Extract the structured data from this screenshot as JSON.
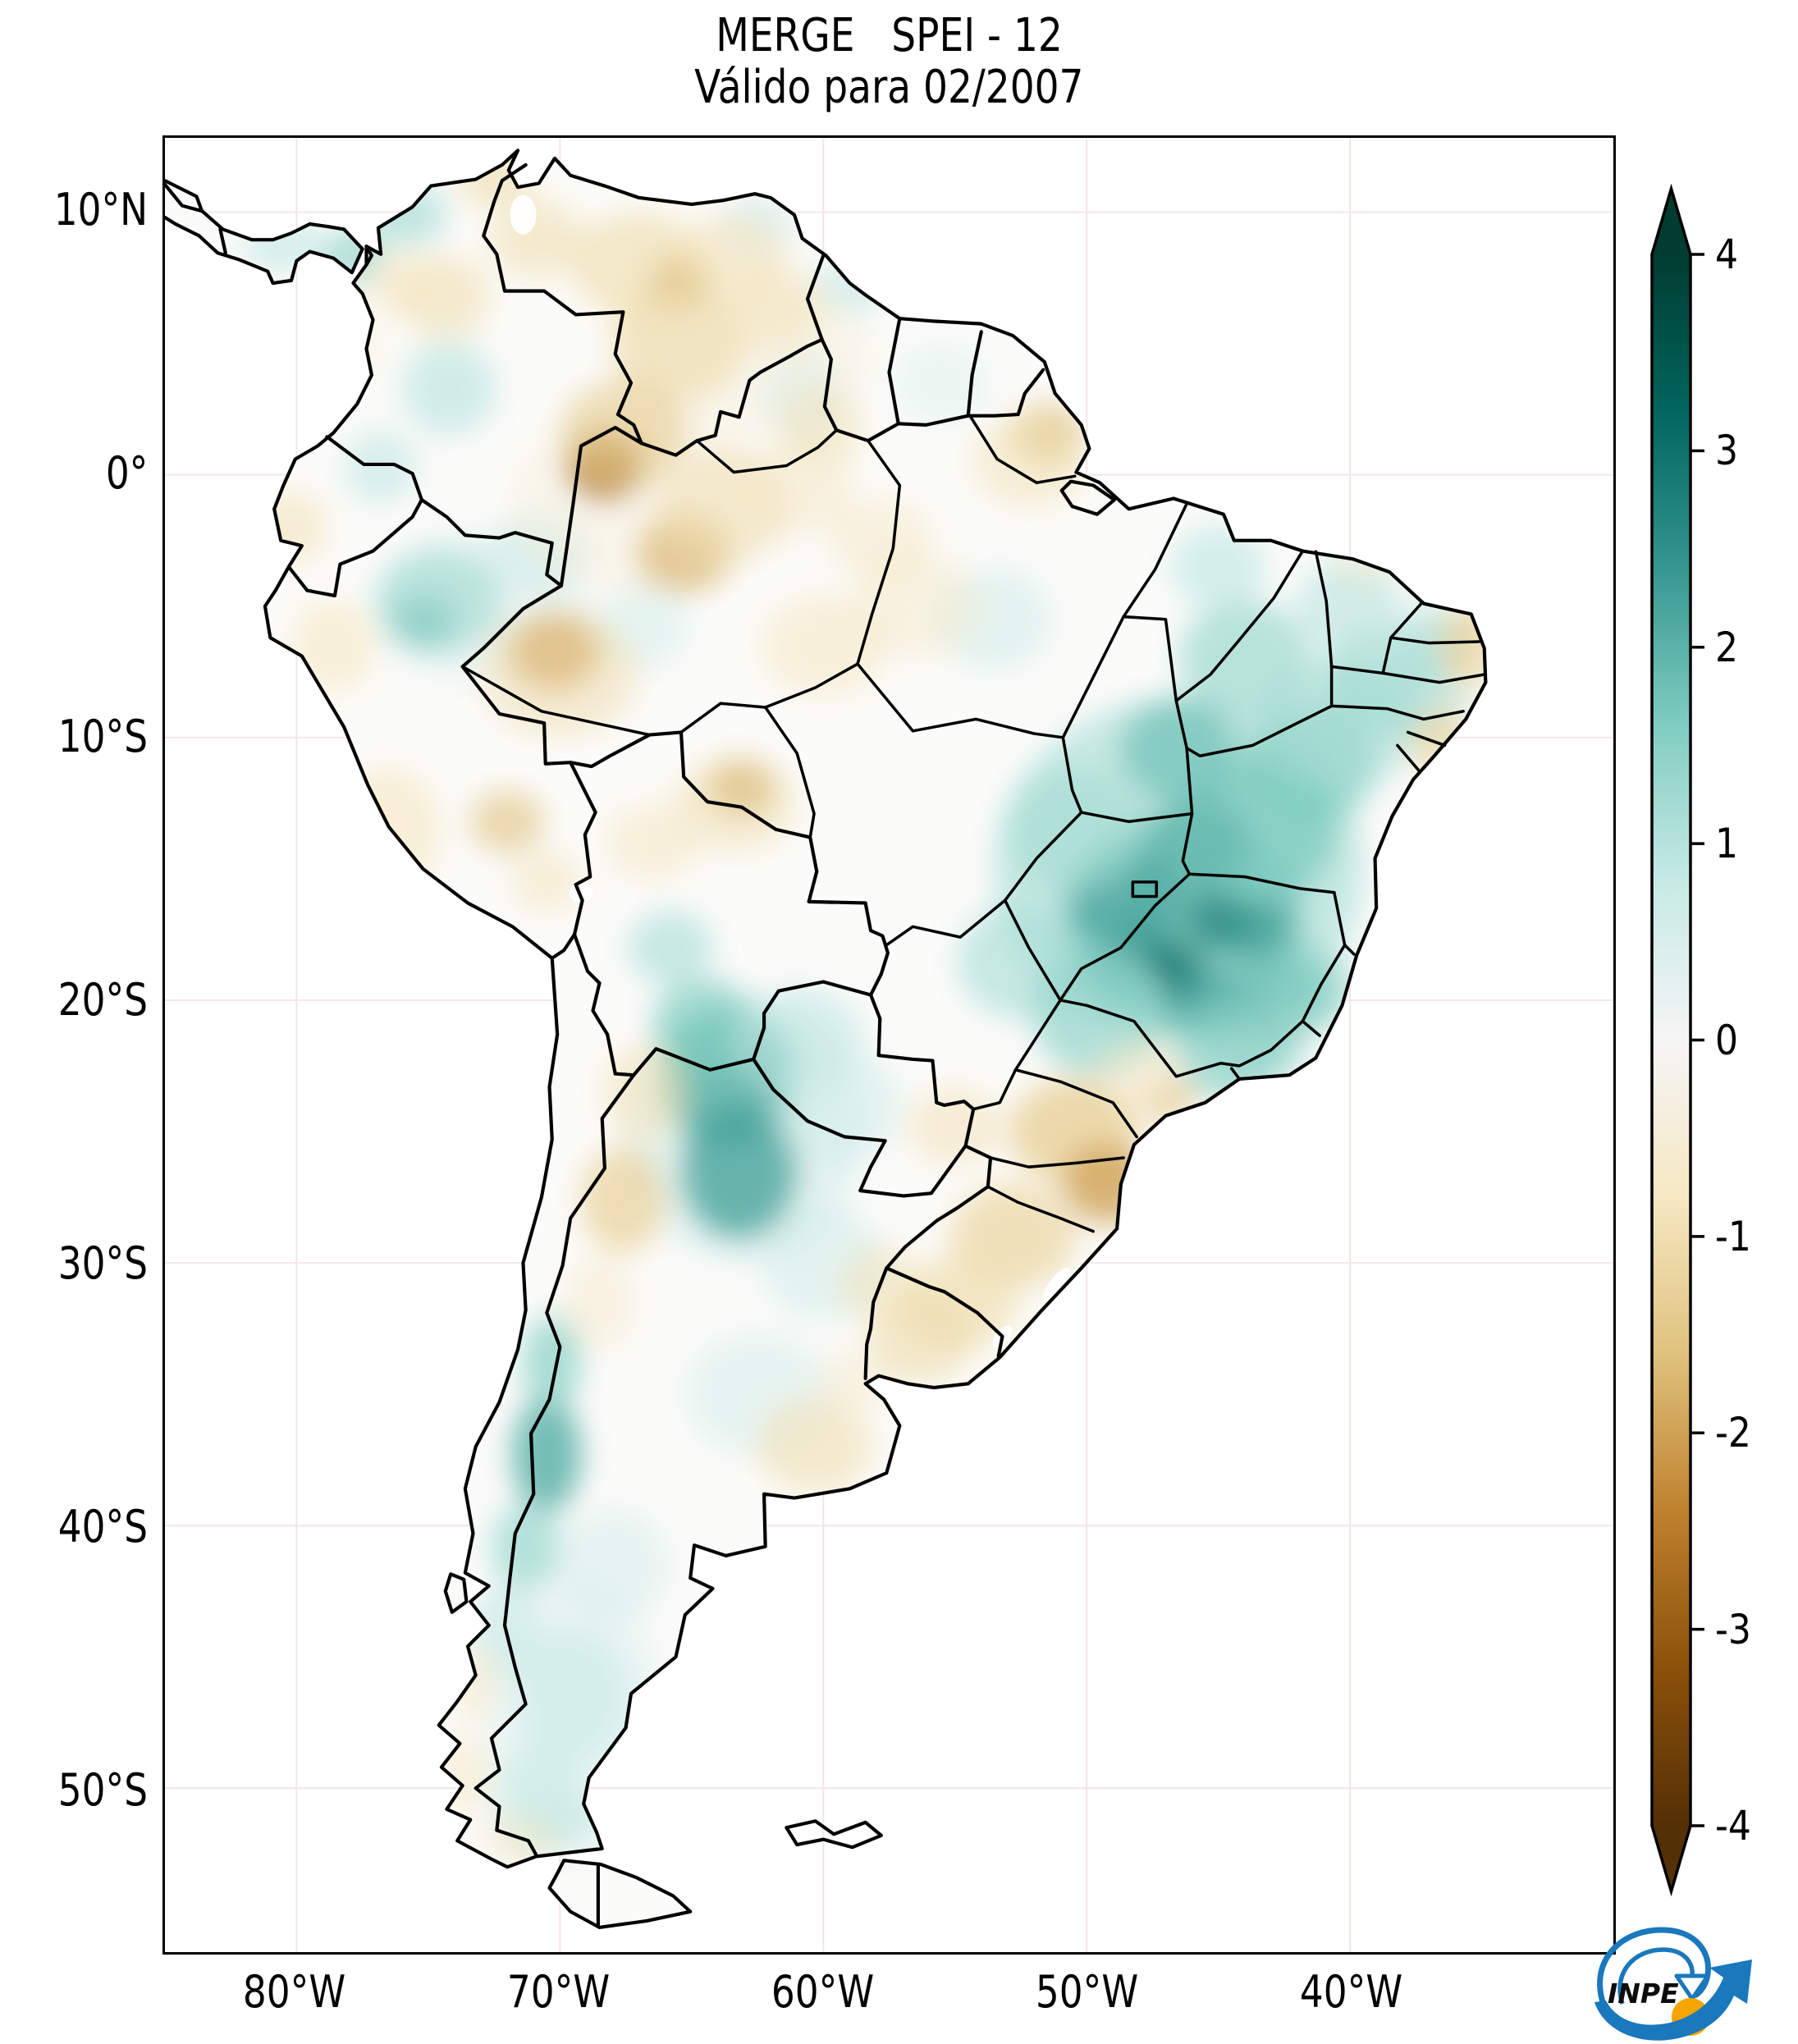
{
  "title": {
    "line1": "MERGE   SPEI - 12",
    "line2": "Válido para 02/2007"
  },
  "axes": {
    "y_ticks": [
      {
        "label": "10°N",
        "deg": 10
      },
      {
        "label": "0°",
        "deg": 0
      },
      {
        "label": "10°S",
        "deg": -10
      },
      {
        "label": "20°S",
        "deg": -20
      },
      {
        "label": "30°S",
        "deg": -30
      },
      {
        "label": "40°S",
        "deg": -40
      },
      {
        "label": "50°S",
        "deg": -50
      }
    ],
    "x_ticks": [
      {
        "label": "80°W",
        "deg": -80
      },
      {
        "label": "70°W",
        "deg": -70
      },
      {
        "label": "60°W",
        "deg": -60
      },
      {
        "label": "50°W",
        "deg": -50
      },
      {
        "label": "40°W",
        "deg": -40
      }
    ]
  },
  "colorbar": {
    "ticks": [
      {
        "label": "4",
        "value": 4
      },
      {
        "label": "3",
        "value": 3
      },
      {
        "label": "2",
        "value": 2
      },
      {
        "label": "1",
        "value": 1
      },
      {
        "label": "0",
        "value": 0
      },
      {
        "label": "-1",
        "value": -1
      },
      {
        "label": "-2",
        "value": -2
      },
      {
        "label": "-3",
        "value": -3
      },
      {
        "label": "-4",
        "value": -4
      }
    ]
  },
  "logo": {
    "text": "INPE",
    "blue": "#1a78bc",
    "orange": "#f6a500"
  },
  "chart_data": {
    "type": "heatmap",
    "product": "MERGE",
    "variable": "SPEI-12",
    "valid_for": "02/2007",
    "colormap": "BrBG",
    "scale_range": [
      -4,
      4
    ],
    "map_extent": {
      "lon": [
        -85,
        -30
      ],
      "lat": [
        -56.2,
        12.8
      ]
    },
    "x_ticks_deg": [
      -80,
      -70,
      -60,
      -50,
      -40
    ],
    "y_ticks_deg": [
      10,
      0,
      -10,
      -20,
      -30,
      -40,
      -50
    ],
    "colormap_stops": [
      {
        "v": -4.0,
        "color": "#543005"
      },
      {
        "v": -3.2,
        "color": "#8c510a"
      },
      {
        "v": -2.4,
        "color": "#bf812d"
      },
      {
        "v": -1.6,
        "color": "#dfc27d"
      },
      {
        "v": -0.8,
        "color": "#f6e8c3"
      },
      {
        "v": 0.0,
        "color": "#f5f5f5"
      },
      {
        "v": 0.8,
        "color": "#c7eae5"
      },
      {
        "v": 1.6,
        "color": "#80cdc1"
      },
      {
        "v": 2.4,
        "color": "#35978f"
      },
      {
        "v": 3.2,
        "color": "#01665e"
      },
      {
        "v": 4.0,
        "color": "#003c30"
      }
    ],
    "anomaly_regions": [
      [
        -46.5,
        -15.0,
        7.0,
        6.5,
        1.2,
        0.6
      ],
      [
        -46.3,
        -17.0,
        4.5,
        4.0,
        1.8,
        0.75
      ],
      [
        -46.8,
        -18.8,
        1.2,
        1.1,
        3.0,
        0.75
      ],
      [
        -44.9,
        -16.9,
        1.3,
        1.2,
        2.8,
        0.7
      ],
      [
        -47.8,
        -17.8,
        1.0,
        0.9,
        2.6,
        0.6
      ],
      [
        -43.6,
        -17.2,
        1.4,
        1.2,
        2.4,
        0.6
      ],
      [
        -45.5,
        -20.2,
        1.5,
        1.3,
        2.4,
        0.65
      ],
      [
        -48.9,
        -18.9,
        1.2,
        1.0,
        2.2,
        0.6
      ],
      [
        -48.5,
        -16.2,
        2.2,
        2.0,
        2.2,
        0.7
      ],
      [
        -43.5,
        -13.5,
        3.0,
        2.8,
        1.6,
        0.8
      ],
      [
        -41.5,
        -11.0,
        2.5,
        2.3,
        1.6,
        0.7
      ],
      [
        -46.5,
        -10.5,
        2.2,
        2.0,
        1.8,
        0.7
      ],
      [
        -44.0,
        -7.0,
        2.5,
        2.2,
        1.3,
        0.7
      ],
      [
        -40.5,
        -9.5,
        3.0,
        2.5,
        1.2,
        0.6
      ],
      [
        -38.8,
        -7.8,
        2.2,
        2.0,
        1.3,
        0.6
      ],
      [
        -37.5,
        -8.5,
        2.0,
        1.8,
        1.1,
        0.55
      ],
      [
        -40.0,
        -5.0,
        2.0,
        1.8,
        1.0,
        0.6
      ],
      [
        -36.8,
        -6.2,
        1.3,
        1.2,
        1.2,
        0.6
      ],
      [
        -50.5,
        -13.5,
        2.6,
        2.4,
        1.2,
        0.65
      ],
      [
        -52.5,
        -18.5,
        2.4,
        2.2,
        1.2,
        0.6
      ],
      [
        -49.5,
        -20.5,
        2.6,
        2.4,
        1.4,
        0.7
      ],
      [
        -44.5,
        -21.8,
        2.2,
        2.0,
        1.5,
        0.7
      ],
      [
        -42.5,
        -20.0,
        1.8,
        1.6,
        1.8,
        0.6
      ],
      [
        -41.5,
        -19.5,
        1.6,
        1.5,
        1.6,
        0.6
      ],
      [
        -43.5,
        -22.0,
        1.8,
        1.0,
        1.4,
        0.6
      ],
      [
        -45.8,
        -14.0,
        2.0,
        1.8,
        2.0,
        0.6
      ],
      [
        -63.0,
        -25.0,
        4.5,
        5.0,
        0.9,
        0.4
      ],
      [
        -63.6,
        -23.0,
        2.6,
        2.6,
        2.0,
        0.85
      ],
      [
        -63.2,
        -26.5,
        2.2,
        2.6,
        2.2,
        0.8
      ],
      [
        -64.5,
        -21.0,
        2.0,
        1.8,
        1.6,
        0.7
      ],
      [
        -61.0,
        -21.5,
        2.5,
        2.0,
        0.9,
        0.6
      ],
      [
        -59.5,
        -24.0,
        2.5,
        2.2,
        0.7,
        0.5
      ],
      [
        -65.8,
        -18.0,
        1.6,
        1.4,
        1.2,
        0.6
      ],
      [
        -70.5,
        -37.3,
        1.3,
        2.2,
        2.0,
        0.85
      ],
      [
        -70.3,
        -33.8,
        1.1,
        1.8,
        1.4,
        0.8
      ],
      [
        -71.3,
        -40.8,
        1.3,
        1.6,
        1.3,
        0.75
      ],
      [
        -72.0,
        -44.0,
        1.3,
        1.8,
        0.9,
        0.6
      ],
      [
        -69.5,
        -47.0,
        3.5,
        5.0,
        0.5,
        0.4
      ],
      [
        -69.5,
        -46.5,
        2.2,
        2.6,
        0.8,
        0.65
      ],
      [
        -70.8,
        -50.5,
        1.8,
        2.2,
        0.8,
        0.6
      ],
      [
        -70.0,
        -51.5,
        1.8,
        1.2,
        0.8,
        0.5
      ],
      [
        -68.0,
        -41.5,
        2.2,
        2.2,
        0.6,
        0.5
      ],
      [
        -62.5,
        -35.0,
        2.8,
        2.4,
        0.6,
        0.5
      ],
      [
        -60.0,
        -30.0,
        2.4,
        2.2,
        0.7,
        0.5
      ],
      [
        -73.0,
        -5.0,
        4.0,
        3.0,
        0.6,
        0.35
      ],
      [
        -74.6,
        -4.8,
        2.4,
        2.0,
        1.2,
        0.7
      ],
      [
        -75.2,
        -5.6,
        1.2,
        1.0,
        1.8,
        0.5
      ],
      [
        -70.8,
        -3.0,
        2.0,
        1.6,
        0.8,
        0.5
      ],
      [
        -74.2,
        3.3,
        1.8,
        1.8,
        1.0,
        0.6
      ],
      [
        -75.9,
        9.9,
        1.6,
        1.2,
        1.2,
        0.65
      ],
      [
        -77.9,
        8.3,
        1.2,
        1.0,
        1.6,
        0.6
      ],
      [
        -80.5,
        8.7,
        1.6,
        0.9,
        1.0,
        0.55
      ],
      [
        -76.8,
        0.3,
        1.4,
        1.4,
        1.0,
        0.5
      ],
      [
        -66.9,
        -5.8,
        1.8,
        1.6,
        0.7,
        0.45
      ],
      [
        -60.8,
        3.0,
        1.6,
        1.6,
        0.8,
        0.5
      ],
      [
        -59.0,
        7.2,
        1.4,
        1.2,
        0.9,
        0.5
      ],
      [
        -62.5,
        9.5,
        1.5,
        1.2,
        0.8,
        0.5
      ],
      [
        -55.5,
        3.5,
        1.8,
        1.6,
        0.6,
        0.4
      ],
      [
        -45.0,
        -3.5,
        1.8,
        1.6,
        1.0,
        0.55
      ],
      [
        -53.5,
        -5.5,
        2.2,
        2.0,
        0.7,
        0.5
      ],
      [
        -63.0,
        4.5,
        5.0,
        3.0,
        -0.5,
        0.4
      ],
      [
        -67.0,
        -1.0,
        5.0,
        3.5,
        -0.6,
        0.35
      ],
      [
        -67.0,
        8.0,
        2.6,
        2.0,
        -1.0,
        0.7
      ],
      [
        -65.3,
        7.3,
        1.2,
        1.0,
        -1.8,
        0.6
      ],
      [
        -70.9,
        9.0,
        1.8,
        1.5,
        -1.0,
        0.6
      ],
      [
        -72.5,
        11.2,
        1.4,
        1.0,
        -1.1,
        0.6
      ],
      [
        -63.4,
        8.3,
        2.0,
        1.6,
        -0.9,
        0.6
      ],
      [
        -65.5,
        5.0,
        2.6,
        2.2,
        -1.1,
        0.65
      ],
      [
        -61.8,
        6.3,
        1.8,
        1.6,
        -0.9,
        0.6
      ],
      [
        -68.3,
        0.3,
        1.5,
        1.3,
        -2.6,
        0.8
      ],
      [
        -67.6,
        1.6,
        2.4,
        2.0,
        -1.4,
        0.6
      ],
      [
        -65.3,
        -3.0,
        1.8,
        1.5,
        -1.8,
        0.65
      ],
      [
        -63.8,
        -1.2,
        2.6,
        2.2,
        -1.0,
        0.55
      ],
      [
        -61.0,
        -0.5,
        2.2,
        1.8,
        -0.8,
        0.5
      ],
      [
        -60.0,
        1.8,
        1.6,
        1.4,
        -1.0,
        0.5
      ],
      [
        -70.2,
        -6.7,
        1.7,
        1.5,
        -2.2,
        0.8
      ],
      [
        -70.0,
        -7.6,
        3.0,
        2.4,
        -1.0,
        0.55
      ],
      [
        -63.1,
        -11.9,
        1.3,
        1.1,
        -2.0,
        0.75
      ],
      [
        -63.4,
        -12.6,
        2.4,
        1.8,
        -1.0,
        0.5
      ],
      [
        -74.4,
        6.8,
        1.8,
        1.6,
        -1.0,
        0.6
      ],
      [
        -76.2,
        7.3,
        1.2,
        1.2,
        -0.9,
        0.5
      ],
      [
        -77.8,
        4.8,
        1.0,
        1.2,
        -0.8,
        0.4
      ],
      [
        -80.2,
        -2.0,
        1.4,
        1.4,
        -0.9,
        0.6
      ],
      [
        -78.6,
        -6.5,
        1.6,
        1.8,
        -0.8,
        0.6
      ],
      [
        -76.5,
        -13.5,
        2.0,
        2.4,
        -0.8,
        0.65
      ],
      [
        -72.0,
        -13.2,
        1.4,
        1.2,
        -1.6,
        0.6
      ],
      [
        -70.5,
        -15.5,
        1.4,
        1.2,
        -0.9,
        0.5
      ],
      [
        -66.5,
        -14.0,
        1.8,
        1.5,
        -0.8,
        0.55
      ],
      [
        -60.0,
        -6.5,
        2.4,
        2.0,
        -0.8,
        0.55
      ],
      [
        -56.5,
        -5.0,
        2.4,
        2.0,
        -0.7,
        0.5
      ],
      [
        -57.8,
        -2.5,
        2.0,
        1.6,
        -0.8,
        0.5
      ],
      [
        -51.5,
        1.5,
        1.4,
        1.2,
        -1.7,
        0.7
      ],
      [
        -52.2,
        0.5,
        2.2,
        1.8,
        -0.9,
        0.55
      ],
      [
        -35.5,
        -6.5,
        1.1,
        1.6,
        -1.3,
        0.7
      ],
      [
        -36.5,
        -10.2,
        1.2,
        1.4,
        -1.2,
        0.65
      ],
      [
        -39.5,
        -3.3,
        1.0,
        0.8,
        -0.8,
        0.5
      ],
      [
        -50.5,
        -25.0,
        2.4,
        2.0,
        -1.3,
        0.8
      ],
      [
        -49.2,
        -27.0,
        1.7,
        1.5,
        -2.0,
        0.8
      ],
      [
        -52.8,
        -29.0,
        2.4,
        2.0,
        -1.2,
        0.7
      ],
      [
        -54.8,
        -31.5,
        2.2,
        1.8,
        -1.0,
        0.7
      ],
      [
        -56.3,
        -32.8,
        2.0,
        1.8,
        -1.1,
        0.6
      ],
      [
        -57.8,
        -30.8,
        1.6,
        1.4,
        -1.0,
        0.5
      ],
      [
        -55.0,
        -24.8,
        1.8,
        1.5,
        -0.9,
        0.6
      ],
      [
        -46.9,
        -23.8,
        1.1,
        0.9,
        -1.6,
        0.6
      ],
      [
        -48.0,
        -22.8,
        1.6,
        1.4,
        -0.8,
        0.5
      ],
      [
        -60.3,
        -37.0,
        2.2,
        1.8,
        -1.0,
        0.6
      ],
      [
        -58.8,
        -34.5,
        1.4,
        1.2,
        -0.7,
        0.5
      ],
      [
        -67.6,
        -27.6,
        1.6,
        2.0,
        -1.3,
        0.7
      ],
      [
        -66.8,
        -23.5,
        1.6,
        1.8,
        -0.9,
        0.6
      ],
      [
        -68.5,
        -31.5,
        1.4,
        1.8,
        -0.7,
        0.5
      ],
      [
        -73.3,
        -46.0,
        0.9,
        1.4,
        -0.7,
        0.6
      ],
      [
        -73.6,
        -49.5,
        0.9,
        1.6,
        -0.7,
        0.6
      ],
      [
        -71.5,
        -52.0,
        1.4,
        1.0,
        -0.8,
        0.5
      ]
    ],
    "anomaly_region_format": [
      "lon",
      "lat",
      "rx_deg",
      "ry_deg",
      "spei_value",
      "opacity"
    ]
  }
}
